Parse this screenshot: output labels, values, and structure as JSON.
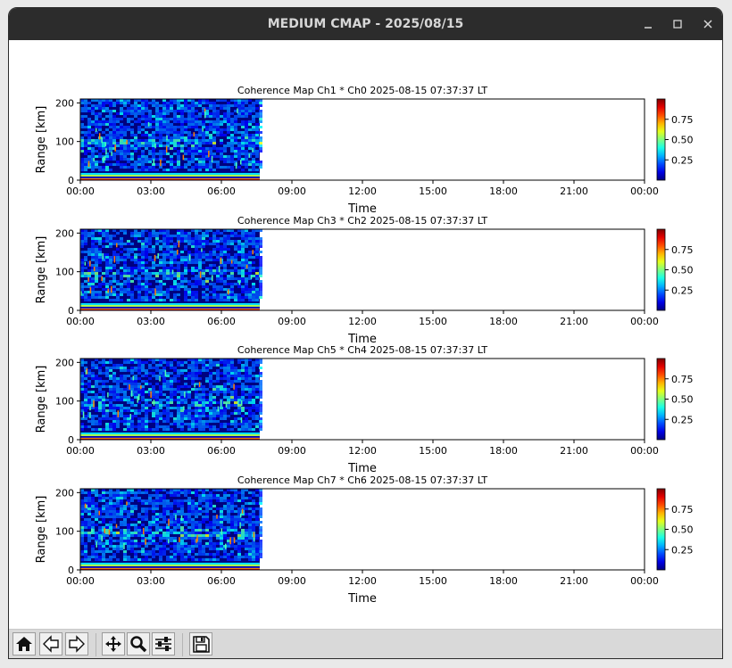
{
  "window": {
    "title": "MEDIUM CMAP - 2025/08/15",
    "controls": [
      "minimize",
      "maximize",
      "close"
    ]
  },
  "toolbar": {
    "buttons": [
      {
        "name": "home",
        "icon": "home-icon"
      },
      {
        "name": "back",
        "icon": "back-arrow-icon"
      },
      {
        "name": "forward",
        "icon": "forward-arrow-icon"
      },
      {
        "name": "pan",
        "icon": "move-icon"
      },
      {
        "name": "zoom",
        "icon": "magnifier-icon"
      },
      {
        "name": "configure",
        "icon": "sliders-icon"
      },
      {
        "name": "save",
        "icon": "floppy-disk-icon"
      }
    ]
  },
  "colors": {
    "titlebar": "#2c2c2c",
    "toolbar": "#d9d9d9",
    "plot_background": "#00007f"
  },
  "chart_data": [
    {
      "type": "heatmap",
      "title": "Coherence Map Ch1 * Ch0 2025-08-15 07:37:37 LT",
      "xlabel": "Time",
      "ylabel": "Range [km]",
      "x_ticks": [
        "00:00",
        "03:00",
        "06:00",
        "09:00",
        "12:00",
        "15:00",
        "18:00",
        "21:00",
        "00:00"
      ],
      "y_ticks": [
        "0",
        "100",
        "200"
      ],
      "xlim_hours": [
        0,
        24
      ],
      "ylim": [
        0,
        210
      ],
      "data_until_hours": 7.63,
      "colorbar": {
        "ticks": [
          "0.25",
          "0.50",
          "0.75"
        ],
        "range": [
          0,
          1
        ],
        "colormap": "jet"
      }
    },
    {
      "type": "heatmap",
      "title": "Coherence Map Ch3 * Ch2 2025-08-15 07:37:37 LT",
      "xlabel": "Time",
      "ylabel": "Range [km]",
      "x_ticks": [
        "00:00",
        "03:00",
        "06:00",
        "09:00",
        "12:00",
        "15:00",
        "18:00",
        "21:00",
        "00:00"
      ],
      "y_ticks": [
        "0",
        "100",
        "200"
      ],
      "xlim_hours": [
        0,
        24
      ],
      "ylim": [
        0,
        210
      ],
      "data_until_hours": 7.63,
      "colorbar": {
        "ticks": [
          "0.25",
          "0.50",
          "0.75"
        ],
        "range": [
          0,
          1
        ],
        "colormap": "jet"
      }
    },
    {
      "type": "heatmap",
      "title": "Coherence Map Ch5 * Ch4 2025-08-15 07:37:37 LT",
      "xlabel": "Time",
      "ylabel": "Range [km]",
      "x_ticks": [
        "00:00",
        "03:00",
        "06:00",
        "09:00",
        "12:00",
        "15:00",
        "18:00",
        "21:00",
        "00:00"
      ],
      "y_ticks": [
        "0",
        "100",
        "200"
      ],
      "xlim_hours": [
        0,
        24
      ],
      "ylim": [
        0,
        210
      ],
      "data_until_hours": 7.63,
      "colorbar": {
        "ticks": [
          "0.25",
          "0.50",
          "0.75"
        ],
        "range": [
          0,
          1
        ],
        "colormap": "jet"
      }
    },
    {
      "type": "heatmap",
      "title": "Coherence Map Ch7 * Ch6 2025-08-15 07:37:37 LT",
      "xlabel": "Time",
      "ylabel": "Range [km]",
      "x_ticks": [
        "00:00",
        "03:00",
        "06:00",
        "09:00",
        "12:00",
        "15:00",
        "18:00",
        "21:00",
        "00:00"
      ],
      "y_ticks": [
        "0",
        "100",
        "200"
      ],
      "xlim_hours": [
        0,
        24
      ],
      "ylim": [
        0,
        210
      ],
      "data_until_hours": 7.63,
      "colorbar": {
        "ticks": [
          "0.25",
          "0.50",
          "0.75"
        ],
        "range": [
          0,
          1
        ],
        "colormap": "jet"
      }
    }
  ]
}
